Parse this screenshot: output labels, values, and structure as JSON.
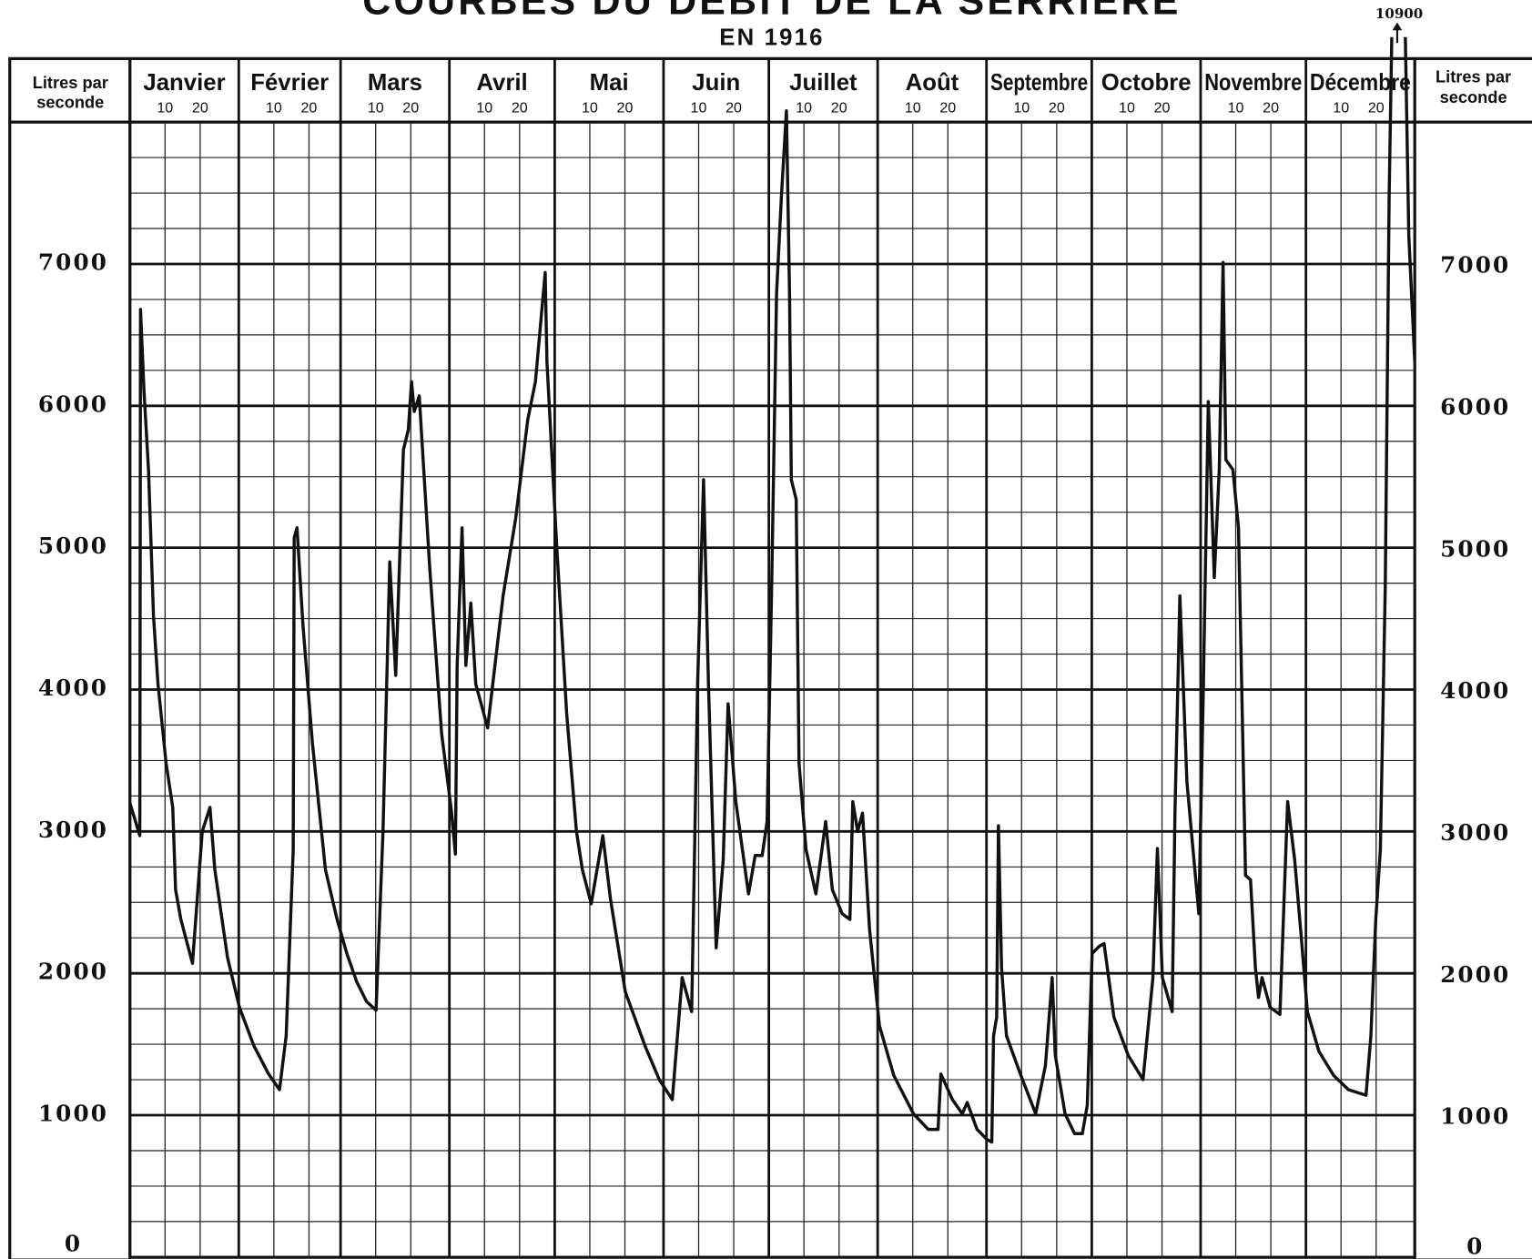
{
  "chart_data": {
    "type": "line",
    "title": "COURBES DU DÉBIT DE LA SERRIÈRE",
    "subtitle": "EN 1916",
    "y_label": [
      "Litres par",
      "seconde"
    ],
    "xlim": [
      0,
      366
    ],
    "month_ticks": [
      {
        "value": 0,
        "label": "Janvier"
      },
      {
        "value": 31,
        "label": "Février"
      },
      {
        "value": 60,
        "label": "Mars"
      },
      {
        "value": 91,
        "label": "Avril"
      },
      {
        "value": 121,
        "label": "Mai"
      },
      {
        "value": 152,
        "label": "Juin"
      },
      {
        "value": 182,
        "label": "Juillet"
      },
      {
        "value": 213,
        "label": "Août"
      },
      {
        "value": 244,
        "label": "Septembre"
      },
      {
        "value": 274,
        "label": "Octobre"
      },
      {
        "value": 305,
        "label": "Novembre"
      },
      {
        "value": 335,
        "label": "Décembre"
      }
    ],
    "day_ticks": [
      {
        "value": 10,
        "label": "10"
      },
      {
        "value": 20,
        "label": "20"
      },
      {
        "value": 41,
        "label": "10"
      },
      {
        "value": 51,
        "label": "20"
      },
      {
        "value": 70,
        "label": "10"
      },
      {
        "value": 80,
        "label": "20"
      },
      {
        "value": 101,
        "label": "10"
      },
      {
        "value": 111,
        "label": "20"
      },
      {
        "value": 131,
        "label": "10"
      },
      {
        "value": 141,
        "label": "20"
      },
      {
        "value": 162,
        "label": "10"
      },
      {
        "value": 172,
        "label": "20"
      },
      {
        "value": 192,
        "label": "10"
      },
      {
        "value": 202,
        "label": "20"
      },
      {
        "value": 223,
        "label": "10"
      },
      {
        "value": 233,
        "label": "20"
      },
      {
        "value": 254,
        "label": "10"
      },
      {
        "value": 264,
        "label": "20"
      },
      {
        "value": 284,
        "label": "10"
      },
      {
        "value": 294,
        "label": "20"
      },
      {
        "value": 315,
        "label": "10"
      },
      {
        "value": 325,
        "label": "20"
      },
      {
        "value": 345,
        "label": "10"
      },
      {
        "value": 355,
        "label": "20"
      }
    ],
    "ylim": [
      0,
      8000
    ],
    "yticks": [
      0,
      1000,
      2000,
      3000,
      4000,
      5000,
      6000,
      7000
    ],
    "grid": true,
    "color": "#111111",
    "x": [
      0,
      2.8,
      3,
      4,
      5.3,
      6.7,
      8,
      10.3,
      12.2,
      13,
      14.5,
      17.8,
      20.6,
      22.8,
      24.2,
      27.8,
      31.2,
      35.3,
      39.5,
      42.6,
      44.5,
      46.5,
      46.8,
      47.6,
      49.3,
      52,
      55.7,
      59,
      61.8,
      64.6,
      67.4,
      70.1,
      72.1,
      74,
      75.7,
      77.9,
      79.3,
      80.2,
      81,
      82.4,
      85.4,
      88.8,
      91.6,
      92.7,
      93.2,
      94.6,
      95.7,
      97.1,
      98.5,
      101.9,
      106.3,
      109.9,
      113.3,
      115.5,
      118.3,
      118.8,
      121.6,
      124.4,
      127.2,
      128.9,
      131.4,
      134.7,
      136.9,
      141.1,
      146.7,
      150.8,
      154.5,
      157.3,
      160,
      161.7,
      163.4,
      164.8,
      167,
      169,
      170.4,
      172.6,
      176.2,
      178.1,
      180.1,
      181.5,
      182.8,
      184.2,
      185.6,
      187,
      187.9,
      188.4,
      189.8,
      190.6,
      192.6,
      195.4,
      198.2,
      200.1,
      202.9,
      205.1,
      205.9,
      207.3,
      208.7,
      210.7,
      213.5,
      217.6,
      223.2,
      227.4,
      230.2,
      231,
      234.3,
      237.1,
      238.5,
      241.3,
      244.1,
      245.5,
      246,
      246.9,
      247.4,
      248.3,
      249.7,
      253.8,
      258,
      260.8,
      262.7,
      263.6,
      266.4,
      269.1,
      271.3,
      272.7,
      274.1,
      276.1,
      277.5,
      280.3,
      284.4,
      288.6,
      291.4,
      292.7,
      294.1,
      296.9,
      297.7,
      299.1,
      301.1,
      303.1,
      304.5,
      305.8,
      307.2,
      308.9,
      310.3,
      311.4,
      312.2,
      314.2,
      315.8,
      317.8,
      319.2,
      320.6,
      321.5,
      322.5,
      324.8,
      327.6,
      329.8,
      331.8,
      333.7,
      335.4,
      338.7,
      342.9,
      347.1,
      352.1,
      353.5,
      354.9,
      356.2,
      357.6,
      358.7,
      361,
      362.7,
      364.3,
      366
    ],
    "values": [
      3200,
      2970,
      6680,
      6100,
      5550,
      4520,
      4040,
      3480,
      3170,
      2590,
      2380,
      2070,
      3000,
      3170,
      2730,
      2110,
      1760,
      1490,
      1290,
      1180,
      1560,
      2870,
      5070,
      5140,
      4450,
      3620,
      2730,
      2380,
      2140,
      1940,
      1800,
      1740,
      3000,
      4900,
      4100,
      5690,
      5830,
      6170,
      5960,
      6070,
      4860,
      3690,
      3140,
      2840,
      4170,
      5140,
      4170,
      4610,
      4040,
      3730,
      4660,
      5210,
      5900,
      6170,
      6940,
      6310,
      5000,
      3830,
      3000,
      2730,
      2490,
      2970,
      2520,
      1870,
      1490,
      1250,
      1110,
      1970,
      1730,
      4040,
      5480,
      4040,
      2180,
      2800,
      3900,
      3210,
      2560,
      2830,
      2830,
      3070,
      4720,
      6790,
      7480,
      8080,
      6790,
      5480,
      5340,
      3480,
      2870,
      2560,
      3070,
      2590,
      2420,
      2380,
      3210,
      3000,
      3130,
      2310,
      1630,
      1280,
      1010,
      900,
      900,
      1290,
      1110,
      1010,
      1090,
      900,
      830,
      810,
      1560,
      1690,
      3040,
      2040,
      1560,
      1280,
      1010,
      1350,
      1970,
      1420,
      1010,
      870,
      870,
      1070,
      2140,
      2190,
      2210,
      1690,
      1420,
      1250,
      1970,
      2880,
      1970,
      1730,
      3140,
      4660,
      3350,
      2800,
      2420,
      4040,
      6030,
      4790,
      5550,
      7010,
      5620,
      5550,
      5140,
      2690,
      2660,
      2040,
      1830,
      1970,
      1760,
      1710,
      3210,
      2800,
      2250,
      1730,
      1450,
      1280,
      1180,
      1140,
      1560,
      2380,
      2870,
      4720,
      7480,
      10900,
      9500,
      7200,
      6310
    ]
  }
}
